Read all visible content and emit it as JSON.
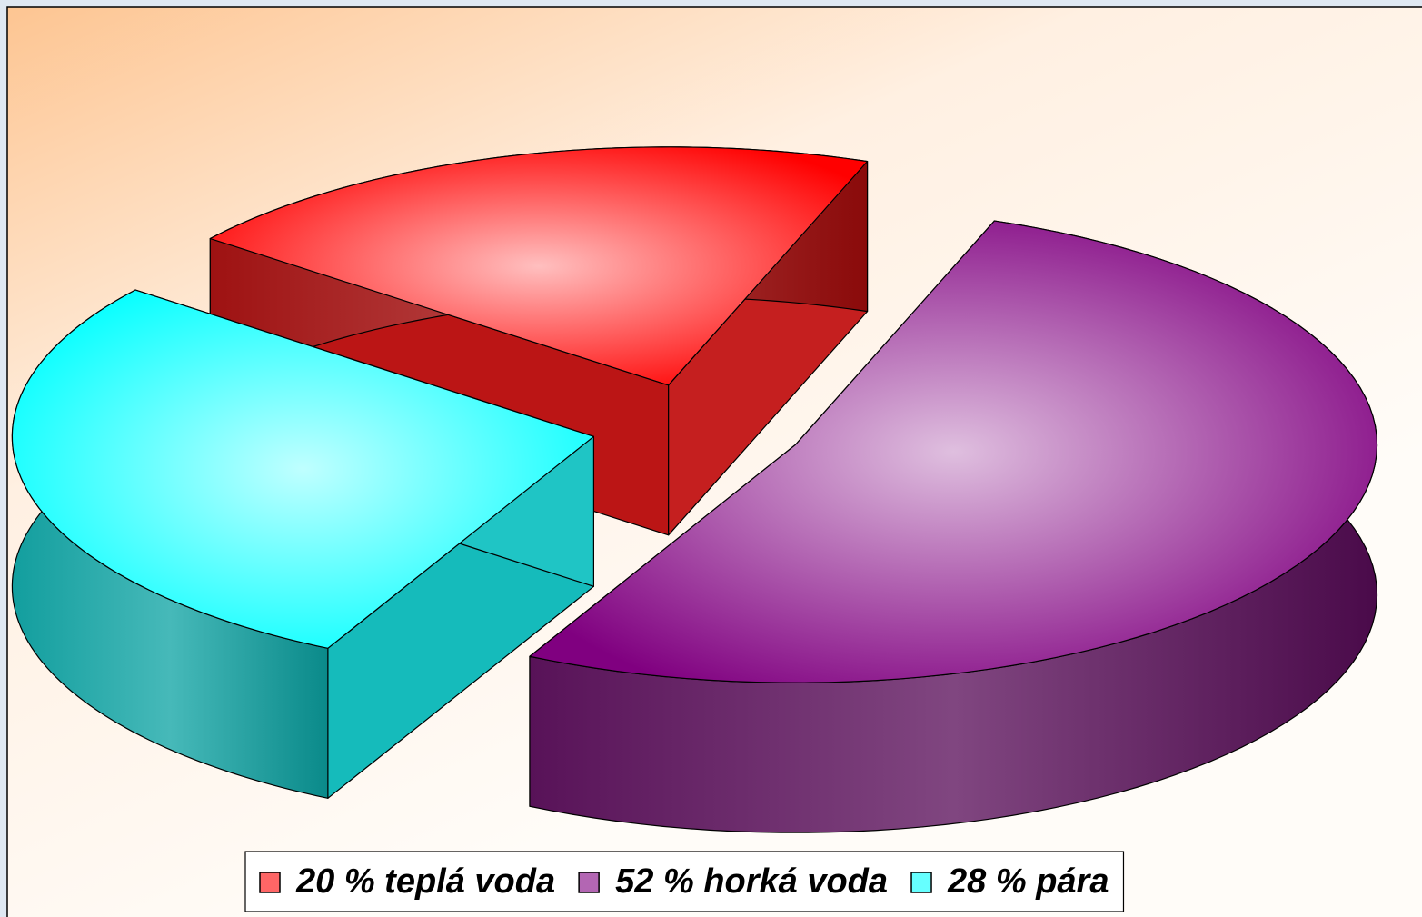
{
  "chart_data": {
    "type": "pie",
    "three_d": true,
    "exploded": true,
    "categories": [
      "20 % teplá voda",
      "52 % horká voda",
      "28 % pára"
    ],
    "values": [
      20,
      52,
      28
    ],
    "colors": [
      "#ff0000",
      "#800080",
      "#00ffff"
    ],
    "legend": "bottom"
  }
}
